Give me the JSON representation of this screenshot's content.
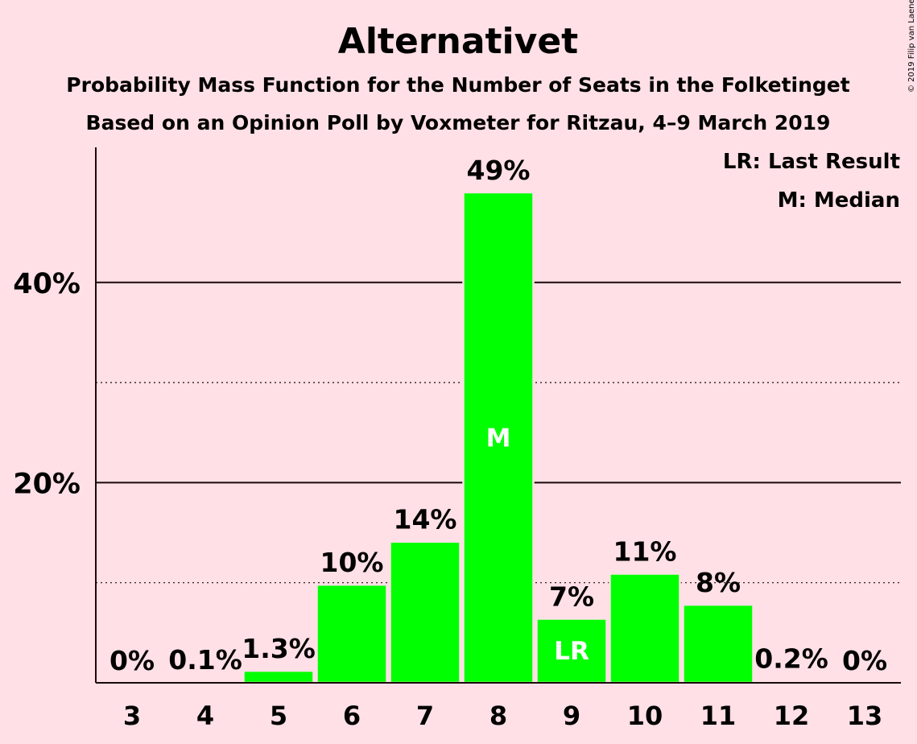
{
  "credit": "© 2019 Filip van Laenen",
  "colors": {
    "background": "#ffe0e6",
    "bar": "#00ff00",
    "text": "#1a0a0a"
  },
  "legend": {
    "lr": "LR: Last Result",
    "median": "M: Median"
  },
  "chart_data": {
    "type": "bar",
    "title": "Alternativet",
    "subtitle": "Probability Mass Function for the Number of Seats in the Folketinget",
    "subtitle2": "Based on an Opinion Poll by Voxmeter for Ritzau, 4–9 March 2019",
    "categories": [
      "3",
      "4",
      "5",
      "6",
      "7",
      "8",
      "9",
      "10",
      "11",
      "12",
      "13"
    ],
    "values": [
      0,
      0.1,
      1.3,
      10,
      14,
      49,
      7,
      11,
      8,
      0.2,
      0
    ],
    "bar_values": [
      0,
      0.1,
      1.2,
      9.8,
      14.1,
      49,
      6.4,
      10.9,
      7.8,
      0.2,
      0
    ],
    "data_labels": [
      "0%",
      "0.1%",
      "1.3%",
      "10%",
      "14%",
      "49%",
      "7%",
      "11%",
      "8%",
      "0.2%",
      "0%"
    ],
    "yticks": [
      {
        "value": 20,
        "label": "20%"
      },
      {
        "value": 40,
        "label": "40%"
      }
    ],
    "ylim": [
      0,
      53.5
    ],
    "gridlines": {
      "solid": [
        20,
        40
      ],
      "dotted": [
        10,
        30
      ]
    },
    "markers": {
      "median": {
        "category": "8",
        "label": "M"
      },
      "last_result": {
        "category": "9",
        "label": "LR"
      }
    },
    "legend_position": "top-right"
  }
}
